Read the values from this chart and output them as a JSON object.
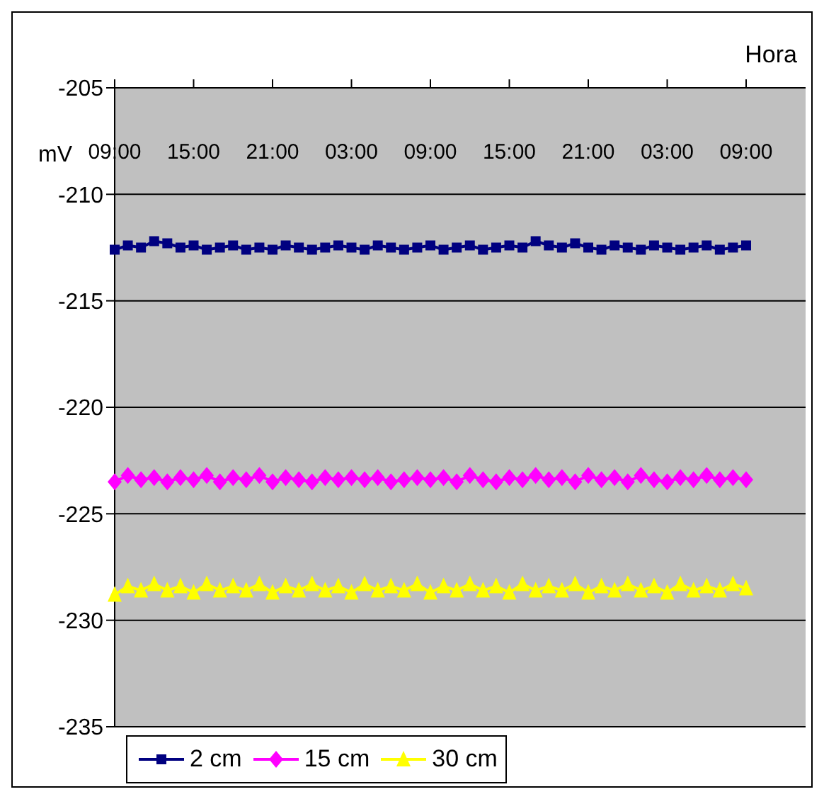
{
  "chart_data": {
    "type": "line",
    "xlabel": "Hora",
    "ylabel": "mV",
    "categories": [
      "09:00",
      null,
      null,
      null,
      null,
      null,
      "15:00",
      null,
      null,
      null,
      null,
      null,
      "21:00",
      null,
      null,
      null,
      null,
      null,
      "03:00",
      null,
      null,
      null,
      null,
      null,
      "09:00",
      null,
      null,
      null,
      null,
      null,
      "15:00",
      null,
      null,
      null,
      null,
      null,
      "21:00",
      null,
      null,
      null,
      null,
      null,
      "03:00",
      null,
      null,
      null,
      null,
      null,
      "09:00"
    ],
    "series": [
      {
        "name": "2 cm",
        "color": "#000080",
        "marker": "square",
        "values": [
          -212.6,
          -212.4,
          -212.5,
          -212.2,
          -212.3,
          -212.5,
          -212.4,
          -212.6,
          -212.5,
          -212.4,
          -212.6,
          -212.5,
          -212.6,
          -212.4,
          -212.5,
          -212.6,
          -212.5,
          -212.4,
          -212.5,
          -212.6,
          -212.4,
          -212.5,
          -212.6,
          -212.5,
          -212.4,
          -212.6,
          -212.5,
          -212.4,
          -212.6,
          -212.5,
          -212.4,
          -212.5,
          -212.2,
          -212.4,
          -212.5,
          -212.3,
          -212.5,
          -212.6,
          -212.4,
          -212.5,
          -212.6,
          -212.4,
          -212.5,
          -212.6,
          -212.5,
          -212.4,
          -212.6,
          -212.5,
          -212.4
        ]
      },
      {
        "name": "15 cm",
        "color": "#ff00ff",
        "marker": "diamond",
        "values": [
          -223.5,
          -223.2,
          -223.4,
          -223.3,
          -223.5,
          -223.3,
          -223.4,
          -223.2,
          -223.5,
          -223.3,
          -223.4,
          -223.2,
          -223.5,
          -223.3,
          -223.4,
          -223.5,
          -223.3,
          -223.4,
          -223.3,
          -223.4,
          -223.3,
          -223.5,
          -223.4,
          -223.3,
          -223.4,
          -223.3,
          -223.5,
          -223.2,
          -223.4,
          -223.5,
          -223.3,
          -223.4,
          -223.2,
          -223.4,
          -223.3,
          -223.5,
          -223.2,
          -223.4,
          -223.3,
          -223.5,
          -223.2,
          -223.4,
          -223.5,
          -223.3,
          -223.4,
          -223.2,
          -223.4,
          -223.3,
          -223.4
        ]
      },
      {
        "name": "30 cm",
        "color": "#ffff00",
        "marker": "triangle",
        "values": [
          -228.8,
          -228.4,
          -228.6,
          -228.3,
          -228.6,
          -228.4,
          -228.7,
          -228.3,
          -228.6,
          -228.4,
          -228.6,
          -228.3,
          -228.7,
          -228.4,
          -228.6,
          -228.3,
          -228.6,
          -228.4,
          -228.7,
          -228.3,
          -228.6,
          -228.4,
          -228.6,
          -228.3,
          -228.7,
          -228.4,
          -228.6,
          -228.3,
          -228.6,
          -228.4,
          -228.7,
          -228.3,
          -228.6,
          -228.4,
          -228.6,
          -228.3,
          -228.7,
          -228.4,
          -228.6,
          -228.3,
          -228.6,
          -228.4,
          -228.7,
          -228.3,
          -228.6,
          -228.4,
          -228.6,
          -228.3,
          -228.5
        ]
      }
    ],
    "ylim": [
      -235,
      -205
    ],
    "yticks": [
      -235,
      -230,
      -225,
      -220,
      -215,
      -210,
      -205
    ],
    "grid": "y",
    "legend": "bottom left",
    "line_style": "solid"
  }
}
